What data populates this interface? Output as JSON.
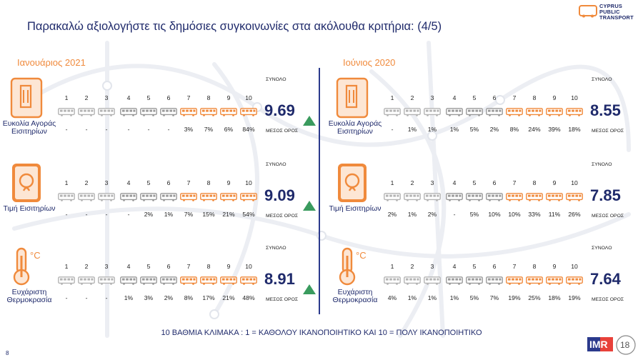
{
  "title": "Παρακαλώ αξιολογήστε τις δημόσιες συγκοινωνίες στα ακόλουθα κριτήρια: (4/5)",
  "logo": {
    "line1": "CYPRUS",
    "line2": "PUBLIC",
    "line3": "TRANSPORT"
  },
  "colors": {
    "navy": "#1f2a6b",
    "orange": "#f08a3c",
    "grey": "#b4b4b4",
    "dark_grey": "#9a9a9a",
    "green": "#3a9b5e"
  },
  "scale": [
    "1",
    "2",
    "3",
    "4",
    "5",
    "6",
    "7",
    "8",
    "9",
    "10"
  ],
  "labels": {
    "total": "ΣΥΝΟΛΟ",
    "mean": "ΜΕΣΟΣ ΟΡΟΣ"
  },
  "left": {
    "period": "Ιανουάριος 2021",
    "criteria": [
      {
        "icon": "ticket-icon",
        "name": "Ευκολία Αγοράς Εισιτηρίων",
        "pcts": [
          "-",
          "-",
          "-",
          "-",
          "-",
          "-",
          "3%",
          "7%",
          "6%",
          "84%"
        ],
        "mean": "9.69",
        "trend": "up"
      },
      {
        "icon": "coin-phone-icon",
        "name": "Τιμή Εισιτηρίων",
        "pcts": [
          "-",
          "-",
          "-",
          "-",
          "2%",
          "1%",
          "7%",
          "15%",
          "21%",
          "54%"
        ],
        "mean": "9.09",
        "trend": "up"
      },
      {
        "icon": "thermometer-icon",
        "name": "Ευχάριστη Θερμοκρασία",
        "pcts": [
          "-",
          "-",
          "-",
          "1%",
          "3%",
          "2%",
          "8%",
          "17%",
          "21%",
          "48%"
        ],
        "mean": "8.91",
        "trend": "up"
      }
    ]
  },
  "right": {
    "period": "Ιούνιος 2020",
    "criteria": [
      {
        "icon": "ticket-icon",
        "name": "Ευκολία Αγοράς Εισιτηρίων",
        "pcts": [
          "-",
          "1%",
          "1%",
          "1%",
          "5%",
          "2%",
          "8%",
          "24%",
          "39%",
          "18%"
        ],
        "mean": "8.55"
      },
      {
        "icon": "coin-phone-icon",
        "name": "Τιμή Εισιτηρίων",
        "pcts": [
          "2%",
          "1%",
          "2%",
          "-",
          "5%",
          "10%",
          "10%",
          "33%",
          "11%",
          "26%"
        ],
        "mean": "7.85"
      },
      {
        "icon": "thermometer-icon",
        "name": "Ευχάριστη Θερμοκρασία",
        "pcts": [
          "4%",
          "1%",
          "1%",
          "1%",
          "5%",
          "7%",
          "19%",
          "25%",
          "18%",
          "19%"
        ],
        "mean": "7.64"
      }
    ]
  },
  "footnote": "10 ΒΑΘΜΙΑ ΚΛΙΜΑΚΑ : 1 = ΚΑΘΟΛΟΥ ΙΚΑΝΟΠΟΙΗΤΙΚΟ ΚΑΙ 10 = ΠΟΛΥ ΙΚΑΝΟΠΟΙΗΤΙΚΟ",
  "page_number": "8",
  "imr_logo": {
    "text": "IMR",
    "badge": "18"
  }
}
